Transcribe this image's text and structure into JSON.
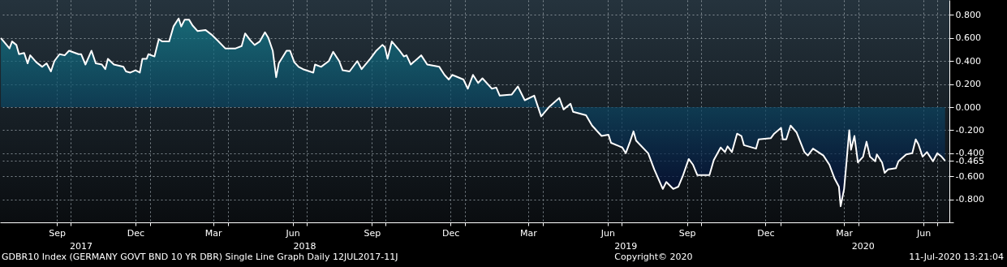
{
  "chart_data": {
    "type": "area",
    "x": [
      "2017-07-12",
      "2017-07-22",
      "2017-07-25",
      "2017-07-30",
      "2017-08-02",
      "2017-08-08",
      "2017-08-12",
      "2017-08-15",
      "2017-08-22",
      "2017-08-29",
      "2017-09-03",
      "2017-09-08",
      "2017-09-12",
      "2017-09-18",
      "2017-09-24",
      "2017-09-29",
      "2017-10-10",
      "2017-10-13",
      "2017-10-18",
      "2017-10-25",
      "2017-10-30",
      "2017-11-06",
      "2017-11-10",
      "2017-11-13",
      "2017-11-20",
      "2017-12-01",
      "2017-12-04",
      "2017-12-09",
      "2017-12-15",
      "2017-12-20",
      "2017-12-23",
      "2017-12-28",
      "2017-12-30",
      "2018-01-06",
      "2018-01-11",
      "2018-01-15",
      "2018-01-23",
      "2018-01-28",
      "2018-02-03",
      "2018-02-06",
      "2018-02-10",
      "2018-02-15",
      "2018-02-19",
      "2018-02-25",
      "2018-03-06",
      "2018-03-13",
      "2018-03-20",
      "2018-03-29",
      "2018-04-10",
      "2018-04-17",
      "2018-04-21",
      "2018-04-27",
      "2018-05-02",
      "2018-05-08",
      "2018-05-14",
      "2018-05-18",
      "2018-05-23",
      "2018-05-27",
      "2018-05-30",
      "2018-06-08",
      "2018-06-12",
      "2018-06-17",
      "2018-06-22",
      "2018-06-27",
      "2018-07-09",
      "2018-07-11",
      "2018-07-18",
      "2018-07-27",
      "2018-08-01",
      "2018-08-08",
      "2018-08-12",
      "2018-08-20",
      "2018-08-29",
      "2018-09-03",
      "2018-09-13",
      "2018-09-20",
      "2018-09-27",
      "2018-09-30",
      "2018-10-03",
      "2018-10-08",
      "2018-10-17",
      "2018-10-22",
      "2018-10-25",
      "2018-10-30",
      "2018-11-11",
      "2018-11-18",
      "2018-12-02",
      "2018-12-08",
      "2018-12-13",
      "2018-12-17",
      "2018-12-30",
      "2019-01-04",
      "2019-01-10",
      "2019-01-16",
      "2019-01-21",
      "2019-02-01",
      "2019-02-06",
      "2019-02-10",
      "2019-02-24",
      "2019-03-03",
      "2019-03-11",
      "2019-03-22",
      "2019-03-30",
      "2019-04-08",
      "2019-04-17",
      "2019-04-20",
      "2019-04-25",
      "2019-05-03",
      "2019-05-06",
      "2019-05-21",
      "2019-05-28",
      "2019-06-08",
      "2019-06-16",
      "2019-06-19",
      "2019-07-02",
      "2019-07-06",
      "2019-07-11",
      "2019-07-15",
      "2019-07-18",
      "2019-08-01",
      "2019-08-08",
      "2019-08-18",
      "2019-08-22",
      "2019-08-30",
      "2019-09-05",
      "2019-09-10",
      "2019-09-17",
      "2019-09-22",
      "2019-09-27",
      "2019-10-11",
      "2019-10-16",
      "2019-10-24",
      "2019-10-29",
      "2019-11-01",
      "2019-11-06",
      "2019-11-12",
      "2019-11-17",
      "2019-11-20",
      "2019-12-04",
      "2019-12-07",
      "2019-12-21",
      "2019-12-25",
      "2020-01-02",
      "2020-01-04",
      "2020-01-08",
      "2020-01-13",
      "2020-01-20",
      "2020-01-29",
      "2020-02-02",
      "2020-02-08",
      "2020-02-20",
      "2020-02-27",
      "2020-03-04",
      "2020-03-09",
      "2020-03-11",
      "2020-03-15",
      "2020-03-18",
      "2020-03-21",
      "2020-03-23",
      "2020-03-27",
      "2020-03-31",
      "2020-04-06",
      "2020-04-10",
      "2020-04-14",
      "2020-04-20",
      "2020-04-22",
      "2020-04-28",
      "2020-05-01",
      "2020-05-05",
      "2020-05-14",
      "2020-05-17",
      "2020-05-26",
      "2020-06-02",
      "2020-06-06",
      "2020-06-09",
      "2020-06-14",
      "2020-06-19",
      "2020-06-26",
      "2020-07-01",
      "2020-07-06",
      "2020-07-10"
    ],
    "series": [
      {
        "color": "#ffffff",
        "values": [
          0.6,
          0.51,
          0.57,
          0.54,
          0.46,
          0.47,
          0.38,
          0.45,
          0.39,
          0.35,
          0.38,
          0.31,
          0.4,
          0.46,
          0.45,
          0.49,
          0.46,
          0.46,
          0.37,
          0.49,
          0.38,
          0.37,
          0.33,
          0.42,
          0.37,
          0.35,
          0.31,
          0.3,
          0.32,
          0.3,
          0.42,
          0.42,
          0.46,
          0.44,
          0.59,
          0.57,
          0.57,
          0.7,
          0.77,
          0.7,
          0.76,
          0.76,
          0.71,
          0.66,
          0.67,
          0.63,
          0.58,
          0.51,
          0.51,
          0.53,
          0.64,
          0.58,
          0.54,
          0.57,
          0.65,
          0.6,
          0.49,
          0.26,
          0.38,
          0.49,
          0.49,
          0.39,
          0.35,
          0.33,
          0.3,
          0.37,
          0.35,
          0.4,
          0.48,
          0.4,
          0.32,
          0.31,
          0.4,
          0.33,
          0.42,
          0.49,
          0.54,
          0.52,
          0.42,
          0.57,
          0.49,
          0.44,
          0.45,
          0.37,
          0.45,
          0.37,
          0.35,
          0.28,
          0.24,
          0.28,
          0.24,
          0.16,
          0.28,
          0.21,
          0.25,
          0.16,
          0.17,
          0.1,
          0.11,
          0.18,
          0.06,
          0.1,
          -0.08,
          0.0,
          0.06,
          0.08,
          -0.02,
          0.03,
          -0.04,
          -0.07,
          -0.16,
          -0.25,
          -0.24,
          -0.31,
          -0.35,
          -0.4,
          -0.3,
          -0.21,
          -0.29,
          -0.4,
          -0.54,
          -0.71,
          -0.65,
          -0.71,
          -0.69,
          -0.6,
          -0.45,
          -0.5,
          -0.59,
          -0.59,
          -0.46,
          -0.35,
          -0.39,
          -0.34,
          -0.39,
          -0.23,
          -0.25,
          -0.33,
          -0.36,
          -0.28,
          -0.27,
          -0.23,
          -0.18,
          -0.28,
          -0.28,
          -0.16,
          -0.22,
          -0.39,
          -0.42,
          -0.36,
          -0.42,
          -0.5,
          -0.62,
          -0.69,
          -0.86,
          -0.71,
          -0.46,
          -0.2,
          -0.37,
          -0.25,
          -0.48,
          -0.43,
          -0.3,
          -0.43,
          -0.47,
          -0.41,
          -0.48,
          -0.57,
          -0.54,
          -0.53,
          -0.47,
          -0.41,
          -0.4,
          -0.28,
          -0.32,
          -0.43,
          -0.39,
          -0.47,
          -0.4,
          -0.43,
          -0.465
        ]
      }
    ],
    "xlim": [
      "2017-07-11",
      "2020-07-15"
    ],
    "xticks": [
      {
        "value": "2017-09-15",
        "label": "Sep"
      },
      {
        "value": "2017-10-01",
        "label": null
      },
      {
        "value": "2017-12-15",
        "label": "Dec"
      },
      {
        "value": "2018-01-01",
        "label": null
      },
      {
        "value": "2018-03-15",
        "label": "Mar"
      },
      {
        "value": "2018-04-01",
        "label": null
      },
      {
        "value": "2018-06-15",
        "label": "Jun"
      },
      {
        "value": "2018-07-01",
        "label": null
      },
      {
        "value": "2018-09-15",
        "label": "Sep"
      },
      {
        "value": "2018-10-01",
        "label": null
      },
      {
        "value": "2018-12-15",
        "label": "Dec"
      },
      {
        "value": "2019-01-01",
        "label": null
      },
      {
        "value": "2019-03-15",
        "label": "Mar"
      },
      {
        "value": "2019-04-01",
        "label": null
      },
      {
        "value": "2019-06-15",
        "label": "Jun"
      },
      {
        "value": "2019-07-01",
        "label": null
      },
      {
        "value": "2019-09-15",
        "label": "Sep"
      },
      {
        "value": "2019-10-01",
        "label": null
      },
      {
        "value": "2019-12-15",
        "label": "Dec"
      },
      {
        "value": "2020-01-01",
        "label": null
      },
      {
        "value": "2020-03-15",
        "label": "Mar"
      },
      {
        "value": "2020-04-01",
        "label": null
      },
      {
        "value": "2020-06-15",
        "label": "Jun"
      },
      {
        "value": "2020-07-01",
        "label": null
      }
    ],
    "x2ticks": [
      {
        "value": "2017-10-13",
        "label": "2017"
      },
      {
        "value": "2018-06-29",
        "label": "2018"
      },
      {
        "value": "2019-07-06",
        "label": "2019"
      },
      {
        "value": "2020-04-06",
        "label": "2020"
      }
    ],
    "ylim": [
      -1.0,
      0.93
    ],
    "yticks": [
      {
        "value": -1.0,
        "label": null
      },
      {
        "value": -0.8,
        "label": "-0.800"
      },
      {
        "value": -0.6,
        "label": "-0.600"
      },
      {
        "value": -0.465,
        "label": "-0.465"
      },
      {
        "value": -0.4,
        "label": "-0.400"
      },
      {
        "value": -0.2,
        "label": "-0.200"
      },
      {
        "value": 0,
        "label": "0.000"
      },
      {
        "value": 0.2,
        "label": "0.200"
      },
      {
        "value": 0.4,
        "label": "0.400"
      },
      {
        "value": 0.6,
        "label": "0.600"
      },
      {
        "value": 0.8,
        "label": "0.800"
      }
    ],
    "grid": true,
    "x2lim": [
      "2017-07-11",
      "2020-07-15"
    ],
    "annotations": [
      "GDBR10 Index (GERMANY GOVT BND 10 YR DBR) Single Line Graph  Daily 12JUL2017-11J",
      "Copyright© 2020",
      "11-Jul-2020 13:21:04"
    ]
  }
}
